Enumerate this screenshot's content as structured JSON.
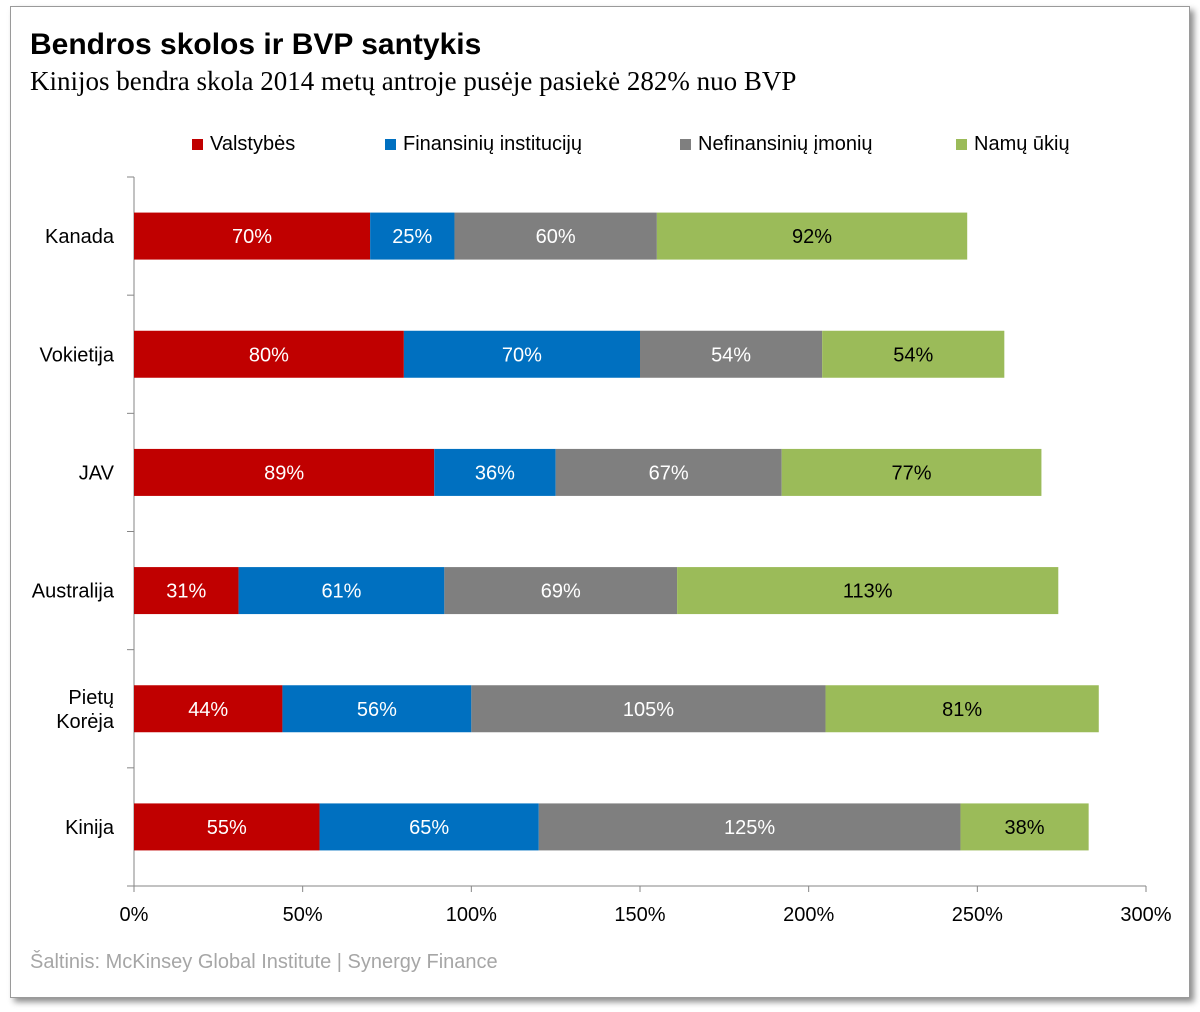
{
  "title": "Bendros skolos ir BVP santykis",
  "subtitle": "Kinijos bendra skola 2014 metų antroje pusėje pasiekė 282% nuo BVP",
  "source": "Šaltinis: McKinsey Global Institute | Synergy Finance",
  "chart_data": {
    "type": "bar",
    "orientation": "horizontal",
    "stacked": true,
    "categories": [
      "Kanada",
      "Vokietija",
      "JAV",
      "Australija",
      "Pietų Korėja",
      "Kinija"
    ],
    "category_lines": [
      [
        "Kanada"
      ],
      [
        "Vokietija"
      ],
      [
        "JAV"
      ],
      [
        "Australija"
      ],
      [
        "Pietų",
        "Korėja"
      ],
      [
        "Kinija"
      ]
    ],
    "series": [
      {
        "name": "Valstybės",
        "color": "#c00000",
        "label_color": "#ffffff",
        "values": [
          70,
          80,
          89,
          31,
          44,
          55
        ]
      },
      {
        "name": "Finansinių institucijų",
        "color": "#0070c0",
        "label_color": "#ffffff",
        "values": [
          25,
          70,
          36,
          61,
          56,
          65
        ]
      },
      {
        "name": "Nefinansinių įmonių",
        "color": "#7f7f7f",
        "label_color": "#ffffff",
        "values": [
          60,
          54,
          67,
          69,
          105,
          125
        ]
      },
      {
        "name": "Namų ūkių",
        "color": "#9bbb59",
        "label_color": "#000000",
        "values": [
          92,
          54,
          77,
          113,
          81,
          38
        ]
      }
    ],
    "xlim": [
      0,
      300
    ],
    "xticks": [
      0,
      50,
      100,
      150,
      200,
      250,
      300
    ],
    "tick_suffix": "%",
    "value_suffix": "%",
    "grid": false,
    "legend_position": "top"
  }
}
